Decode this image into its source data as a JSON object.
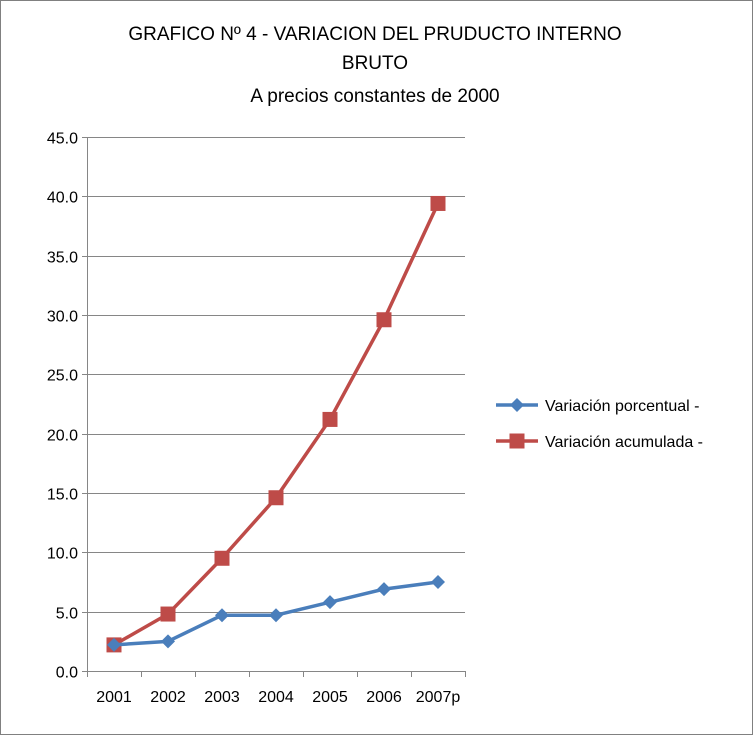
{
  "chart_data": {
    "type": "line",
    "title": "GRAFICO Nº 4 - VARIACION DEL PRUDUCTO INTERNO BRUTO",
    "title_lines": [
      "GRAFICO Nº 4 - VARIACION DEL PRUDUCTO INTERNO",
      "BRUTO"
    ],
    "subtitle": "A precios constantes de 2000",
    "categories": [
      "2001",
      "2002",
      "2003",
      "2004",
      "2005",
      "2006",
      "2007p"
    ],
    "ylim": [
      0,
      45
    ],
    "ytick_step": 5,
    "ytick_labels": [
      "0.0",
      "5.0",
      "10.0",
      "15.0",
      "20.0",
      "25.0",
      "30.0",
      "35.0",
      "40.0",
      "45.0"
    ],
    "grid": true,
    "legend_position": "right",
    "series": [
      {
        "name": "Variación porcentual -",
        "values": [
          2.2,
          2.5,
          4.7,
          4.7,
          5.8,
          6.9,
          7.5
        ],
        "color": "#4A7EBB",
        "marker": "diamond"
      },
      {
        "name": "Variación acumulada -",
        "values": [
          2.2,
          4.8,
          9.5,
          14.6,
          21.2,
          29.6,
          39.4
        ],
        "color": "#BE4B48",
        "marker": "square"
      }
    ]
  }
}
